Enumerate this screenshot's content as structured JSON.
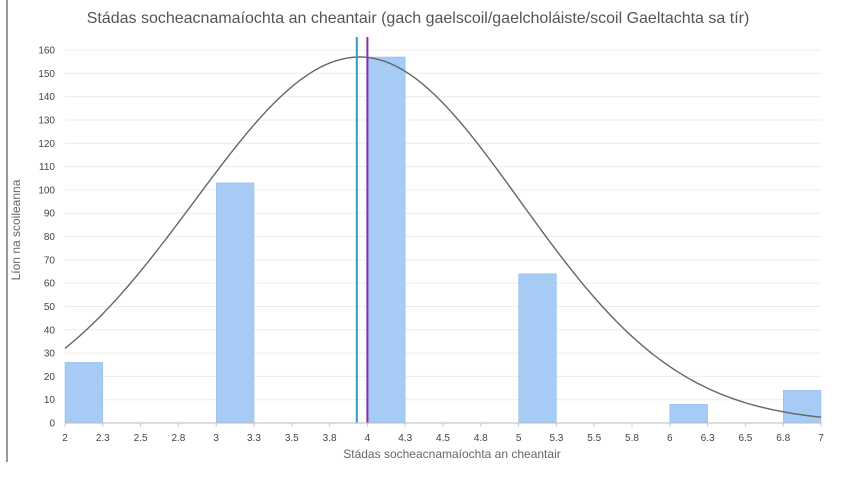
{
  "chart_data": {
    "type": "bar",
    "title": "Stádas socheacnamaíochta an cheantair (gach gaelscoil/gaelcholáiste/scoil Gaeltachta sa tír)",
    "xlabel": "Stádas socheacnamaíochta an cheantair",
    "ylabel": "Líon na scoileanna",
    "xlim": [
      2,
      7
    ],
    "ylim": [
      0,
      160
    ],
    "x_ticks": [
      "2",
      "2.3",
      "2.5",
      "2.8",
      "3",
      "3.3",
      "3.5",
      "3.8",
      "4",
      "4.3",
      "4.5",
      "4.8",
      "5",
      "5.3",
      "5.5",
      "5.8",
      "6",
      "6.3",
      "6.5",
      "6.8",
      "7"
    ],
    "y_ticks": [
      0,
      10,
      20,
      30,
      40,
      50,
      60,
      70,
      80,
      90,
      100,
      110,
      120,
      130,
      140,
      150,
      160
    ],
    "grid": true,
    "bins": [
      {
        "x_start": 2,
        "x_end": 2.25,
        "value": 26
      },
      {
        "x_start": 3,
        "x_end": 3.25,
        "value": 103
      },
      {
        "x_start": 4,
        "x_end": 4.25,
        "value": 157
      },
      {
        "x_start": 5,
        "x_end": 5.25,
        "value": 64
      },
      {
        "x_start": 6,
        "x_end": 6.25,
        "value": 8
      },
      {
        "x_start": 6.75,
        "x_end": 7,
        "value": 14
      }
    ],
    "normal_curve": {
      "peak_x": 3.95,
      "peak_y": 157,
      "y_at_2": 32,
      "y_at_7": 2.5,
      "color": "#666666"
    },
    "reference_lines": [
      {
        "x": 3.93,
        "color": "#3a9bbf"
      },
      {
        "x": 4.0,
        "color": "#8e2ba8"
      }
    ],
    "bar_color": "#a6cbf5"
  }
}
